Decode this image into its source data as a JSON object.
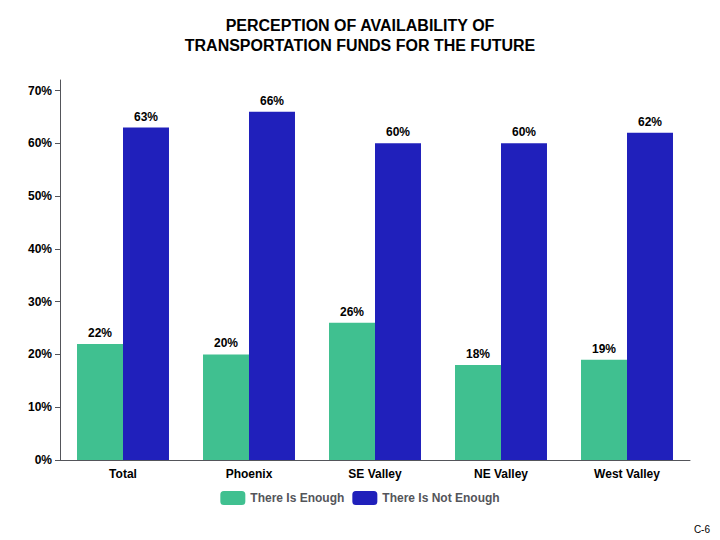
{
  "chart_data": {
    "type": "bar",
    "title": "PERCEPTION OF AVAILABILITY OF\nTRANSPORTATION FUNDS FOR THE FUTURE",
    "categories": [
      "Total",
      "Phoenix",
      "SE Valley",
      "NE Valley",
      "West Valley"
    ],
    "series": [
      {
        "name": "There Is Enough",
        "color": "#40C090",
        "values": [
          22,
          20,
          26,
          18,
          19
        ],
        "value_labels": [
          "22%",
          "20%",
          "26%",
          "18%",
          "19%"
        ]
      },
      {
        "name": "There Is Not Enough",
        "color": "#2020BB",
        "values": [
          63,
          66,
          60,
          60,
          62
        ],
        "value_labels": [
          "63%",
          "66%",
          "60%",
          "60%",
          "62%"
        ]
      }
    ],
    "ylim": [
      0,
      72
    ],
    "yticks": [
      {
        "value": 0,
        "label": "0%"
      },
      {
        "value": 10,
        "label": "10%"
      },
      {
        "value": 20,
        "label": "20%"
      },
      {
        "value": 30,
        "label": "30%"
      },
      {
        "value": 40,
        "label": "40%"
      },
      {
        "value": 50,
        "label": "50%"
      },
      {
        "value": 60,
        "label": "60%"
      },
      {
        "value": 70,
        "label": "70%"
      }
    ],
    "grid": false,
    "legend": "bottom",
    "data_labels": true,
    "annotations": [
      "C-6"
    ]
  }
}
